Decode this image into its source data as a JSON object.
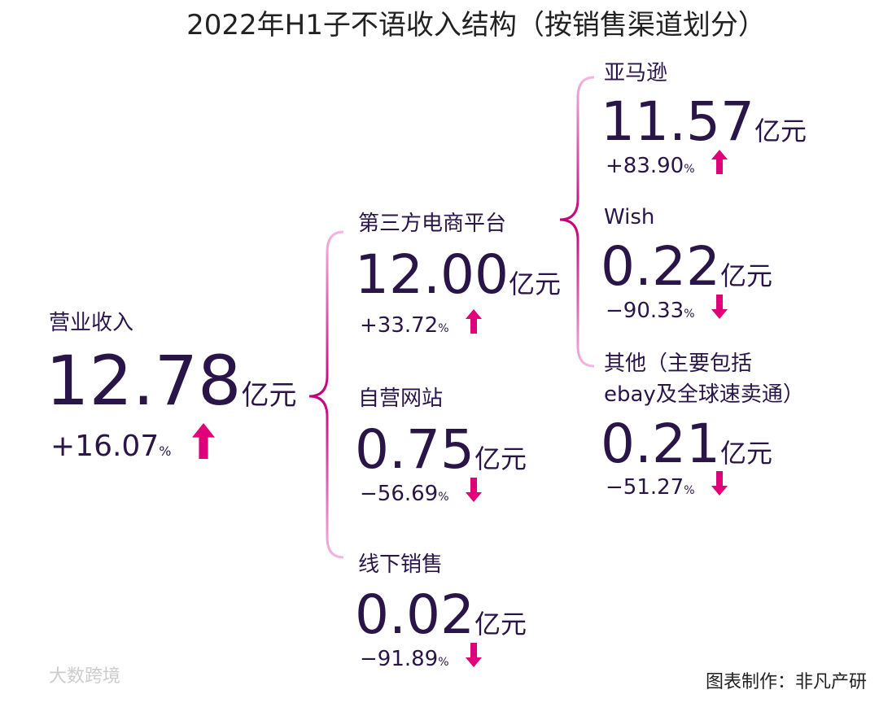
{
  "title": "2022年H1子不语收入结构（按销售渠道划分）",
  "root": {
    "label": [
      "营业收入"
    ],
    "value": "12.78",
    "unit": "亿元",
    "change": "+16.07",
    "change_unit": "%"
  },
  "channels": [
    {
      "label": [
        "第三方电商平台"
      ],
      "value": "12.00",
      "unit": "亿元",
      "change": "+33.72",
      "change_unit": "%"
    },
    {
      "label": [
        "自营网站"
      ],
      "value": "0.75",
      "unit": "亿元",
      "change": "−56.69",
      "change_unit": "%"
    },
    {
      "label": [
        "线下销售"
      ],
      "value": "0.02",
      "unit": "亿元",
      "change": "−91.89",
      "change_unit": "%"
    }
  ],
  "platforms": [
    {
      "label": [
        "亚马逊"
      ],
      "value": "11.57",
      "unit": "亿元",
      "change": "+83.90",
      "change_unit": "%"
    },
    {
      "label": [
        "Wish"
      ],
      "value": "0.22",
      "unit": "亿元",
      "change": "−90.33",
      "change_unit": "%"
    },
    {
      "label": [
        "其他（主要包括",
        "ebay及全球速卖通）"
      ],
      "value": "0.21",
      "unit": "亿元",
      "change": "−51.27",
      "change_unit": "%"
    }
  ],
  "watermark": "大数跨境",
  "footer": "图表制作：非凡产研"
}
